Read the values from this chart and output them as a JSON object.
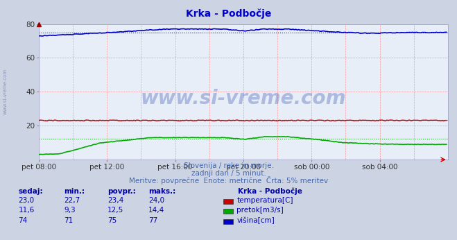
{
  "title": "Krka - Podbočje",
  "bg_color": "#ccd4e4",
  "plot_bg_color": "#e8eef8",
  "title_color": "#0000cc",
  "grid_color": "#ff9999",
  "xlim": [
    0,
    288
  ],
  "ylim": [
    0,
    80
  ],
  "yticks": [
    20,
    40,
    60,
    80
  ],
  "xtick_labels": [
    "pet 08:00",
    "pet 12:00",
    "pet 16:00",
    "pet 20:00",
    "sob 00:00",
    "sob 04:00"
  ],
  "xtick_positions": [
    0,
    48,
    96,
    144,
    192,
    240
  ],
  "subtitle1": "Slovenija / reke in morje.",
  "subtitle2": "zadnji dan / 5 minut.",
  "subtitle3": "Meritve: povprečne  Enote: metrične  Črta: 5% meritev",
  "subtitle_color": "#4466aa",
  "watermark": "www.si-vreme.com",
  "legend_title": "Krka - Podbočje",
  "legend_items": [
    {
      "label": "temperatura[C]",
      "color": "#cc0000"
    },
    {
      "label": "pretok[m3/s]",
      "color": "#00aa00"
    },
    {
      "label": "višina[cm]",
      "color": "#0000cc"
    }
  ],
  "table_headers": [
    "sedaj:",
    "min.:",
    "povpr.:",
    "maks.:"
  ],
  "table_data": [
    [
      "23,0",
      "22,7",
      "23,4",
      "24,0"
    ],
    [
      "11,6",
      "9,3",
      "12,5",
      "14,4"
    ],
    [
      "74",
      "71",
      "75",
      "77"
    ]
  ],
  "table_color": "#0000aa",
  "temp_avg": 23.4,
  "flow_avg": 12.5,
  "height_avg": 75,
  "temp_color": "#cc0000",
  "flow_color": "#00aa00",
  "height_color": "#0000cc"
}
